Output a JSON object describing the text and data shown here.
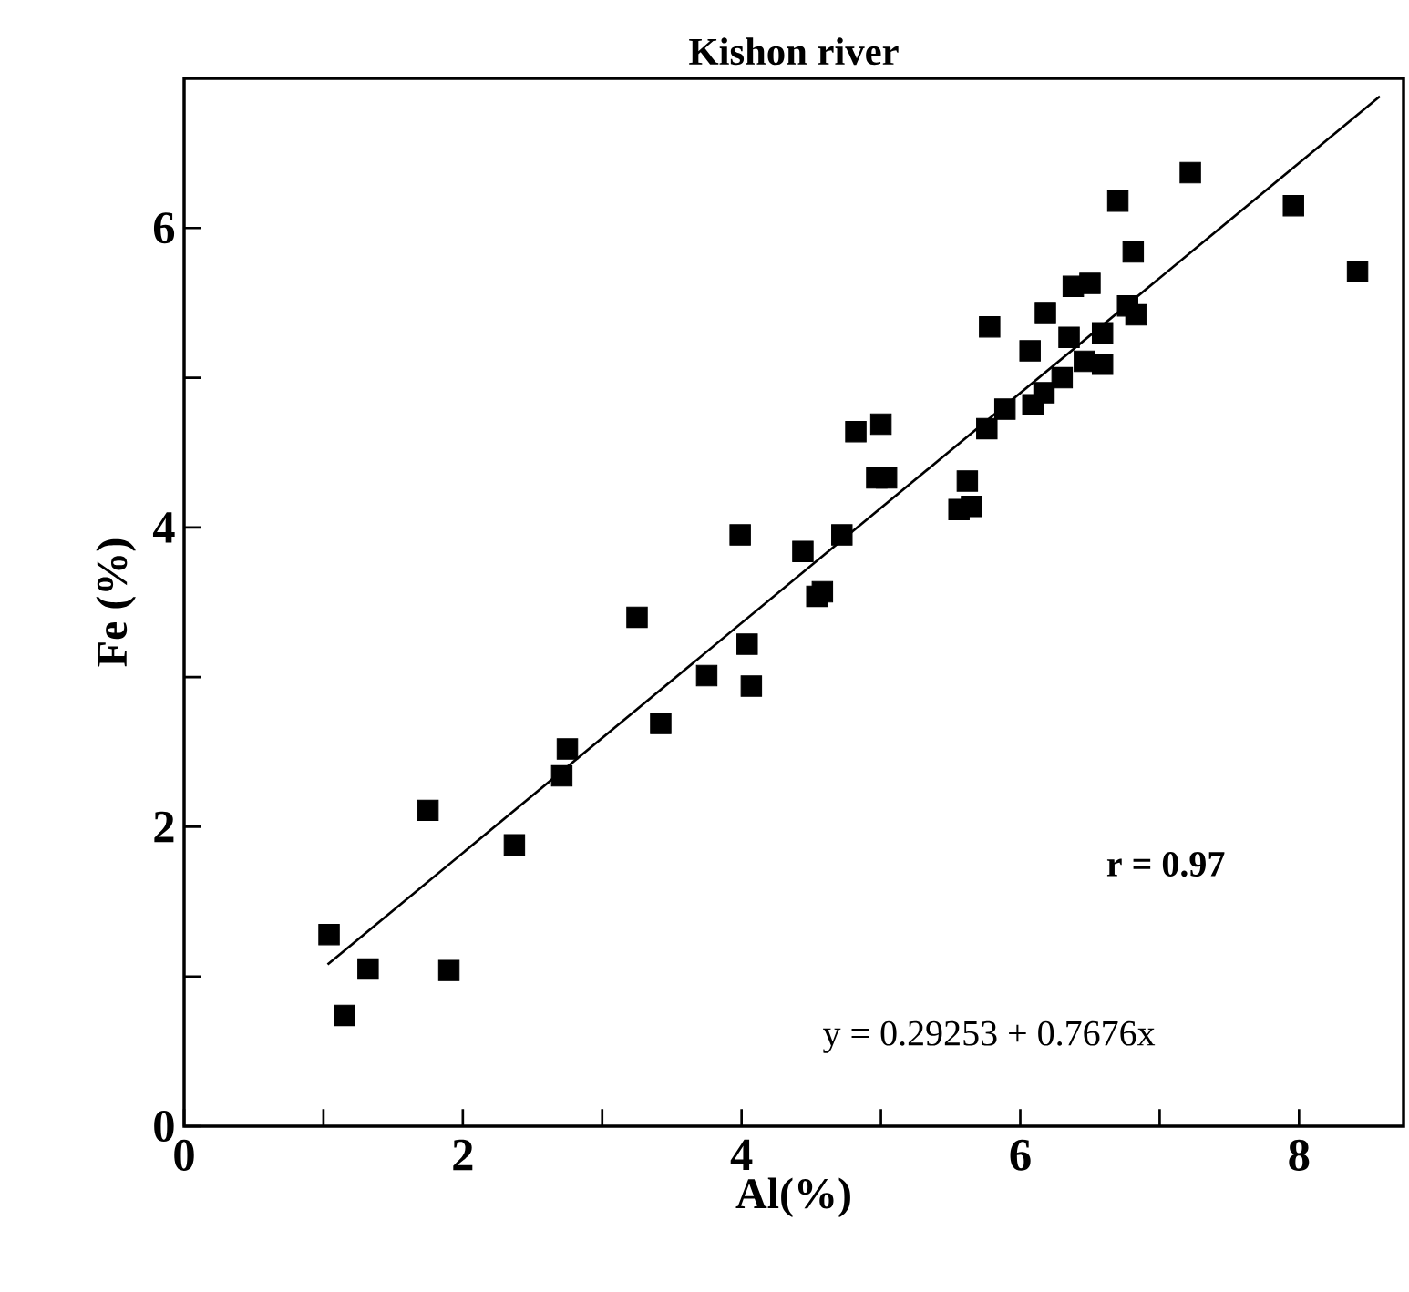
{
  "chart_data": {
    "type": "scatter",
    "title": "Kishon river",
    "xlabel": "Al(%)",
    "ylabel": "Fe (%)",
    "xlim": [
      0,
      8.75
    ],
    "ylim": [
      0,
      7
    ],
    "xticks": [
      0,
      {
        "value": 1,
        "label": null
      },
      2,
      {
        "value": 3,
        "label": null
      },
      4,
      {
        "value": 5,
        "label": null
      },
      6,
      {
        "value": 7,
        "label": null
      },
      8
    ],
    "yticks": [
      0,
      {
        "value": 1,
        "label": null
      },
      2,
      {
        "value": 3,
        "label": null
      },
      4,
      {
        "value": 5,
        "label": null
      },
      6
    ],
    "marker": "square",
    "annotations": [
      "r  =  0.97",
      "y = 0.29253 + 0.7676x"
    ],
    "series": [
      {
        "color": "#000000",
        "x": [
          1.04,
          1.15,
          1.32,
          1.75,
          1.9,
          2.37,
          2.71,
          2.75,
          3.25,
          3.42,
          3.75,
          4.04,
          4.07,
          3.99,
          4.44,
          4.54,
          4.58,
          4.72,
          4.82,
          5.0,
          4.97,
          5.04,
          5.62,
          5.56,
          5.65,
          5.76,
          5.89,
          5.78,
          6.07,
          6.09,
          6.17,
          6.3,
          6.35,
          6.18,
          6.46,
          6.59,
          6.59,
          6.38,
          6.5,
          6.77,
          6.83,
          6.81,
          6.7,
          7.22,
          7.96,
          8.42
        ],
        "values": [
          1.28,
          0.74,
          1.05,
          2.11,
          1.04,
          1.88,
          2.34,
          2.52,
          3.4,
          2.69,
          3.01,
          3.22,
          2.94,
          3.95,
          3.84,
          3.54,
          3.57,
          3.95,
          4.64,
          4.69,
          4.33,
          4.33,
          4.31,
          4.12,
          4.14,
          4.66,
          4.79,
          5.34,
          5.18,
          4.82,
          4.9,
          5.0,
          5.27,
          5.43,
          5.11,
          5.09,
          5.3,
          5.61,
          5.63,
          5.48,
          5.42,
          5.84,
          6.18,
          6.37,
          6.15,
          5.71
        ]
      },
      {
        "type": "line",
        "color": "#000000",
        "marker": "none",
        "line_style": "solid",
        "x": [
          1.03,
          8.58
        ],
        "values": [
          1.08,
          6.88
        ]
      }
    ]
  }
}
